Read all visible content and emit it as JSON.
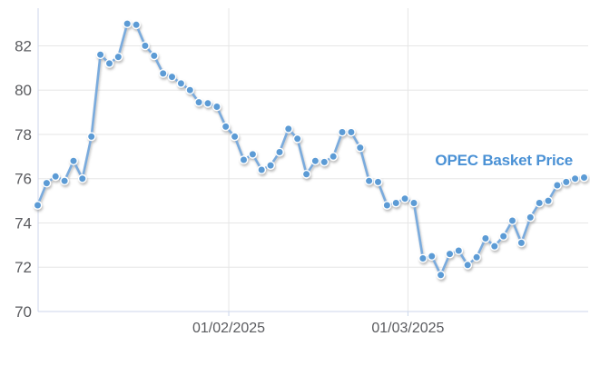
{
  "chart": {
    "series_label": "OPEC Basket Price",
    "colors": {
      "background": "#ffffff",
      "line": "#7aabdd",
      "marker": "#5b9bd5",
      "marker_border": "#ffffff",
      "series_label_text": "#4a91d5",
      "grid": "#e6e6e6",
      "axis_line": "#ccd6eb",
      "tick_label": "#5a5b5f"
    }
  },
  "chart_data": {
    "type": "line",
    "title": "OPEC Basket Price",
    "xlabel": "",
    "ylabel": "",
    "grid": true,
    "legend_position": "inline-right",
    "y_ticks": [
      70,
      72,
      74,
      76,
      78,
      80,
      82
    ],
    "ylim": [
      70,
      83.7
    ],
    "x_tick_labels": [
      "01/02/2025",
      "01/03/2025"
    ],
    "date_format": "DD/MM/YYYY",
    "series": [
      {
        "name": "OPEC Basket Price",
        "dates": [
          "02/01/2025",
          "03/01/2025",
          "06/01/2025",
          "07/01/2025",
          "08/01/2025",
          "09/01/2025",
          "10/01/2025",
          "13/01/2025",
          "14/01/2025",
          "15/01/2025",
          "16/01/2025",
          "17/01/2025",
          "20/01/2025",
          "21/01/2025",
          "22/01/2025",
          "23/01/2025",
          "24/01/2025",
          "27/01/2025",
          "28/01/2025",
          "29/01/2025",
          "30/01/2025",
          "31/01/2025",
          "03/02/2025",
          "04/02/2025",
          "05/02/2025",
          "06/02/2025",
          "07/02/2025",
          "10/02/2025",
          "11/02/2025",
          "12/02/2025",
          "13/02/2025",
          "14/02/2025",
          "17/02/2025",
          "18/02/2025",
          "19/02/2025",
          "20/02/2025",
          "21/02/2025",
          "24/02/2025",
          "25/02/2025",
          "26/02/2025",
          "27/02/2025",
          "28/02/2025",
          "03/03/2025",
          "04/03/2025",
          "05/03/2025",
          "06/03/2025",
          "07/03/2025",
          "10/03/2025",
          "11/03/2025",
          "12/03/2025",
          "13/03/2025",
          "14/03/2025",
          "17/03/2025",
          "18/03/2025",
          "19/03/2025",
          "20/03/2025",
          "21/03/2025",
          "24/03/2025",
          "25/03/2025",
          "26/03/2025",
          "27/03/2025",
          "28/03/2025"
        ],
        "values": [
          74.8,
          75.8,
          76.1,
          75.9,
          76.8,
          76.0,
          77.9,
          81.6,
          81.2,
          81.5,
          83.0,
          82.95,
          82.0,
          81.55,
          80.75,
          80.6,
          80.3,
          80.0,
          79.45,
          79.4,
          79.25,
          78.35,
          77.9,
          76.85,
          77.1,
          76.4,
          76.6,
          77.2,
          78.25,
          77.8,
          76.2,
          76.8,
          76.75,
          77.0,
          78.1,
          78.1,
          77.4,
          75.9,
          75.85,
          74.8,
          74.9,
          75.1,
          74.9,
          72.4,
          72.5,
          71.65,
          72.6,
          72.75,
          72.1,
          72.45,
          73.3,
          72.95,
          73.4,
          74.1,
          73.1,
          74.25,
          74.9,
          75.0,
          75.7,
          75.85,
          76.0,
          76.05
        ]
      }
    ]
  }
}
